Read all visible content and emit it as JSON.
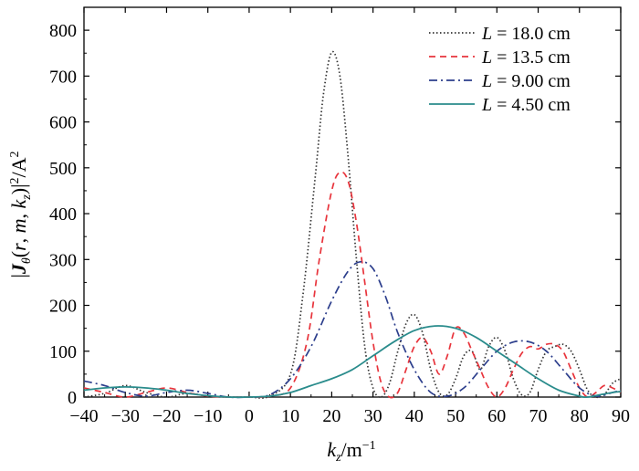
{
  "chart_data": {
    "type": "line",
    "xlabel": "k_z/m⁻¹",
    "ylabel": "|J_θ(r, m, k_z)|²/A²",
    "xlim": [
      -40,
      90
    ],
    "ylim": [
      0,
      850
    ],
    "xticks": [
      -40,
      -30,
      -20,
      -10,
      0,
      10,
      20,
      30,
      40,
      50,
      60,
      70,
      80,
      90
    ],
    "yticks": [
      0,
      100,
      200,
      300,
      400,
      500,
      600,
      700,
      800
    ],
    "legend_position": "top-right",
    "grid": false,
    "series": [
      {
        "name": "L = 18.0 cm",
        "color": "#333333",
        "style": "dotted",
        "x": [
          -40,
          -35,
          -30,
          -25,
          -20,
          -15,
          -10,
          -5,
          0,
          5,
          10,
          13,
          16,
          18,
          20,
          22,
          24,
          26,
          28,
          30,
          32,
          34,
          36,
          38,
          40,
          42,
          44,
          46,
          48,
          50,
          52,
          54,
          56,
          58,
          60,
          62,
          64,
          66,
          68,
          70,
          72,
          74,
          76,
          78,
          80,
          82,
          84,
          86,
          88,
          90
        ],
        "y": [
          0,
          8,
          25,
          10,
          0,
          8,
          2,
          0,
          0,
          2,
          50,
          220,
          480,
          660,
          752,
          700,
          520,
          300,
          110,
          20,
          0,
          30,
          100,
          160,
          180,
          140,
          60,
          10,
          5,
          40,
          90,
          100,
          60,
          110,
          130,
          100,
          40,
          5,
          10,
          60,
          100,
          110,
          115,
          100,
          60,
          15,
          0,
          5,
          30,
          40
        ]
      },
      {
        "name": "L = 13.5 cm",
        "color": "#e8343c",
        "style": "dashed",
        "x": [
          -40,
          -35,
          -30,
          -25,
          -20,
          -15,
          -10,
          -5,
          0,
          5,
          10,
          14,
          17,
          20,
          22,
          24,
          26,
          28,
          30,
          32,
          34,
          36,
          38,
          40,
          42,
          44,
          46,
          48,
          50,
          52,
          54,
          56,
          58,
          60,
          62,
          64,
          66,
          68,
          70,
          72,
          74,
          76,
          78,
          80,
          82,
          84,
          86,
          88,
          90
        ],
        "y": [
          20,
          10,
          0,
          10,
          20,
          10,
          2,
          0,
          0,
          2,
          20,
          120,
          300,
          450,
          490,
          470,
          380,
          250,
          120,
          30,
          0,
          10,
          60,
          110,
          130,
          100,
          50,
          90,
          150,
          140,
          100,
          60,
          20,
          0,
          20,
          60,
          95,
          110,
          105,
          115,
          115,
          100,
          60,
          20,
          0,
          10,
          25,
          20,
          10
        ]
      },
      {
        "name": "L = 9.00 cm",
        "color": "#2c3e8c",
        "style": "dashdot",
        "x": [
          -40,
          -35,
          -30,
          -25,
          -20,
          -15,
          -10,
          -5,
          0,
          5,
          10,
          15,
          20,
          24,
          27,
          30,
          33,
          36,
          40,
          44,
          48,
          52,
          56,
          60,
          64,
          68,
          72,
          76,
          80,
          84,
          88,
          90
        ],
        "y": [
          35,
          25,
          10,
          2,
          10,
          15,
          8,
          0,
          0,
          5,
          40,
          110,
          210,
          275,
          295,
          280,
          220,
          140,
          60,
          10,
          2,
          20,
          60,
          100,
          120,
          120,
          100,
          60,
          20,
          2,
          10,
          15
        ]
      },
      {
        "name": "L = 4.50 cm",
        "color": "#2a8c8c",
        "style": "solid",
        "x": [
          -40,
          -35,
          -30,
          -25,
          -20,
          -15,
          -10,
          -5,
          0,
          5,
          10,
          15,
          20,
          25,
          30,
          35,
          40,
          45,
          50,
          55,
          60,
          65,
          70,
          75,
          80,
          82,
          85,
          88,
          90
        ],
        "y": [
          15,
          20,
          22,
          20,
          15,
          8,
          3,
          0,
          0,
          2,
          10,
          25,
          40,
          60,
          90,
          120,
          145,
          155,
          150,
          130,
          100,
          70,
          40,
          15,
          2,
          0,
          5,
          10,
          12
        ]
      }
    ]
  }
}
